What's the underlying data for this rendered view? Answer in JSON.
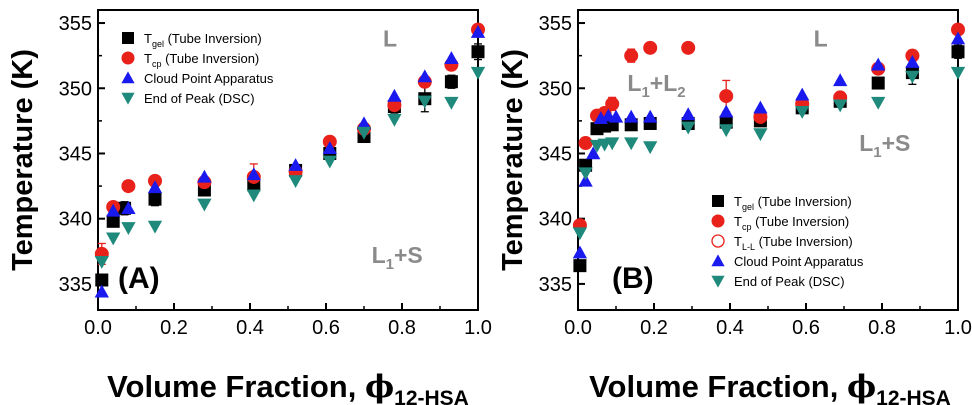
{
  "colors": {
    "gel": "#000000",
    "cp": "#e8211b",
    "ll": "#e8211b",
    "cloud": "#1a1aee",
    "dsc": "#1f8a7c",
    "region_text": "#8a8a8a"
  },
  "chart_data": [
    {
      "type": "scatter",
      "panel_label": "(A)",
      "ylabel": "Temperature (K)",
      "xlabel_main": "Volume Fraction, ",
      "xlabel_phi": "ϕ",
      "xlabel_sub": "12-HSA",
      "xlim": [
        0,
        1
      ],
      "ylim": [
        333,
        356
      ],
      "x_ticks": [
        "0.0",
        "0.2",
        "0.4",
        "0.6",
        "0.8",
        "1.0"
      ],
      "y_ticks": [
        "335",
        "340",
        "345",
        "350",
        "355"
      ],
      "regions": [
        {
          "text": "L",
          "x": 0.75,
          "y": 353.2
        },
        {
          "text": "L",
          "sub": "1",
          "text2": "+S",
          "x": 0.72,
          "y": 336.6
        }
      ],
      "legend": [
        {
          "marker": "square",
          "color_key": "gel",
          "base": "T",
          "sub": "gel",
          "rest": " (Tube Inversion)"
        },
        {
          "marker": "circle",
          "color_key": "cp",
          "base": "T",
          "sub": "cp",
          "rest": " (Tube Inversion)"
        },
        {
          "marker": "triangle-up",
          "color_key": "cloud",
          "base": "Cloud Point Apparatus",
          "sub": "",
          "rest": ""
        },
        {
          "marker": "triangle-down",
          "color_key": "dsc",
          "base": "End of Peak (DSC)",
          "sub": "",
          "rest": ""
        }
      ],
      "series": [
        {
          "name": "Tgel (Tube Inversion)",
          "marker": "square",
          "color_key": "gel",
          "x": [
            0.01,
            0.04,
            0.07,
            0.15,
            0.28,
            0.41,
            0.52,
            0.61,
            0.7,
            0.78,
            0.86,
            0.93,
            1.0
          ],
          "y": [
            335.3,
            339.8,
            340.8,
            341.5,
            342.2,
            342.6,
            343.7,
            345.0,
            346.3,
            348.6,
            349.2,
            350.5,
            352.8
          ],
          "err": [
            0,
            0.4,
            0.5,
            0.5,
            0.4,
            0.5,
            0,
            0.5,
            0,
            0.5,
            1.0,
            0.5,
            0.6
          ]
        },
        {
          "name": "Tcp (Tube Inversion)",
          "marker": "circle",
          "color_key": "cp",
          "x": [
            0.01,
            0.04,
            0.08,
            0.15,
            0.28,
            0.41,
            0.52,
            0.61,
            0.7,
            0.78,
            0.86,
            0.93,
            1.0
          ],
          "y": [
            337.3,
            340.9,
            342.5,
            342.9,
            342.8,
            343.2,
            343.6,
            345.9,
            346.9,
            348.7,
            350.5,
            351.8,
            354.5
          ],
          "err": [
            0.8,
            0,
            0.4,
            0.4,
            0,
            1.0,
            0,
            0.4,
            0,
            0,
            0.4,
            0.3,
            0.4
          ]
        },
        {
          "name": "Cloud Point Apparatus",
          "marker": "triangle-up",
          "color_key": "cloud",
          "x": [
            0.01,
            0.04,
            0.08,
            0.15,
            0.28,
            0.41,
            0.52,
            0.61,
            0.7,
            0.78,
            0.86,
            0.93,
            1.0
          ],
          "y": [
            334.4,
            340.6,
            340.8,
            342.4,
            343.2,
            343.4,
            344.1,
            345.4,
            347.3,
            349.4,
            350.9,
            352.3,
            354.3
          ],
          "err": []
        },
        {
          "name": "End of Peak (DSC)",
          "marker": "triangle-down",
          "color_key": "dsc",
          "x": [
            0.01,
            0.04,
            0.08,
            0.15,
            0.28,
            0.41,
            0.52,
            0.61,
            0.7,
            0.78,
            0.86,
            0.93,
            1.0
          ],
          "y": [
            336.7,
            338.5,
            339.3,
            339.4,
            341.1,
            341.8,
            342.9,
            344.4,
            346.6,
            347.6,
            349.0,
            348.9,
            351.2
          ],
          "err": []
        }
      ]
    },
    {
      "type": "scatter",
      "panel_label": "(B)",
      "ylabel": "Temperature (K)",
      "xlabel_main": "Volume Fraction, ",
      "xlabel_phi": "ϕ",
      "xlabel_sub": "12-HSA",
      "xlim": [
        0,
        1
      ],
      "ylim": [
        333,
        356
      ],
      "x_ticks": [
        "0.0",
        "0.2",
        "0.4",
        "0.6",
        "0.8",
        "1.0"
      ],
      "y_ticks": [
        "335",
        "340",
        "345",
        "350",
        "355"
      ],
      "regions": [
        {
          "text": "L",
          "x": 0.62,
          "y": 353.2
        },
        {
          "text": "L",
          "sub": "1",
          "text2": "+L",
          "sub2": "2",
          "x": 0.13,
          "y": 349.8
        },
        {
          "text": "L",
          "sub": "1",
          "text2": "+S",
          "x": 0.74,
          "y": 345.2
        }
      ],
      "legend": [
        {
          "marker": "square",
          "color_key": "gel",
          "base": "T",
          "sub": "gel",
          "rest": " (Tube Inversion)"
        },
        {
          "marker": "circle",
          "color_key": "cp",
          "base": "T",
          "sub": "cp",
          "rest": " (Tube Inversion)"
        },
        {
          "marker": "circle-open",
          "color_key": "ll",
          "base": "T",
          "sub": "L-L",
          "rest": " (Tube Inversion)"
        },
        {
          "marker": "triangle-up",
          "color_key": "cloud",
          "base": "Cloud Point Apparatus",
          "sub": "",
          "rest": ""
        },
        {
          "marker": "triangle-down",
          "color_key": "dsc",
          "base": "End of Peak (DSC)",
          "sub": "",
          "rest": ""
        }
      ],
      "series": [
        {
          "name": "Tgel (Tube Inversion)",
          "marker": "square",
          "color_key": "gel",
          "x": [
            0.005,
            0.02,
            0.05,
            0.07,
            0.09,
            0.14,
            0.19,
            0.29,
            0.39,
            0.48,
            0.59,
            0.69,
            0.79,
            0.88,
            1.0
          ],
          "y": [
            336.4,
            344.1,
            346.9,
            347.1,
            347.2,
            347.2,
            347.3,
            347.3,
            347.4,
            347.5,
            348.5,
            349.0,
            350.4,
            351.2,
            352.8
          ],
          "err": [
            0.4,
            0.3,
            0.3,
            0.3,
            0.3,
            0.3,
            0.3,
            0.3,
            0.4,
            0.4,
            0.4,
            0.3,
            0.4,
            0.9,
            0.5
          ]
        },
        {
          "name": "Tcp (Tube Inversion)",
          "marker": "circle",
          "color_key": "cp",
          "x": [
            0.005,
            0.02,
            0.05,
            0.07,
            0.09,
            0.14,
            0.19,
            0.29,
            0.39,
            0.48,
            0.59,
            0.69,
            0.79,
            0.88,
            1.0
          ],
          "y": [
            339.5,
            345.8,
            347.9,
            348.1,
            348.8,
            352.5,
            353.1,
            353.1,
            349.4,
            347.8,
            348.8,
            349.3,
            351.5,
            352.5,
            354.5
          ],
          "err": [
            0,
            0,
            0,
            0,
            0.5,
            0.5,
            0,
            0,
            1.2,
            0,
            0,
            0.4,
            0.4,
            0.4,
            0.4
          ]
        },
        {
          "name": "TL-L (Tube Inversion)",
          "marker": "circle-open",
          "color_key": "ll",
          "x": [],
          "y": [],
          "err": []
        },
        {
          "name": "Cloud Point Apparatus",
          "marker": "triangle-up",
          "color_key": "cloud",
          "x": [
            0.005,
            0.02,
            0.04,
            0.06,
            0.08,
            0.1,
            0.14,
            0.19,
            0.29,
            0.39,
            0.48,
            0.59,
            0.69,
            0.79,
            0.88,
            1.0
          ],
          "y": [
            337.4,
            342.9,
            345.0,
            347.7,
            347.9,
            347.8,
            347.8,
            347.8,
            348.0,
            348.2,
            348.5,
            349.5,
            350.6,
            351.8,
            352.0,
            353.8
          ],
          "err": []
        },
        {
          "name": "End of Peak (DSC)",
          "marker": "triangle-down",
          "color_key": "dsc",
          "x": [
            0.005,
            0.02,
            0.05,
            0.07,
            0.09,
            0.14,
            0.19,
            0.29,
            0.39,
            0.48,
            0.59,
            0.69,
            0.79,
            0.88,
            1.0
          ],
          "y": [
            338.9,
            343.5,
            345.6,
            345.7,
            345.8,
            345.8,
            345.5,
            347.0,
            346.8,
            346.5,
            348.2,
            348.7,
            348.9,
            350.9,
            351.2
          ],
          "err": []
        }
      ]
    }
  ]
}
